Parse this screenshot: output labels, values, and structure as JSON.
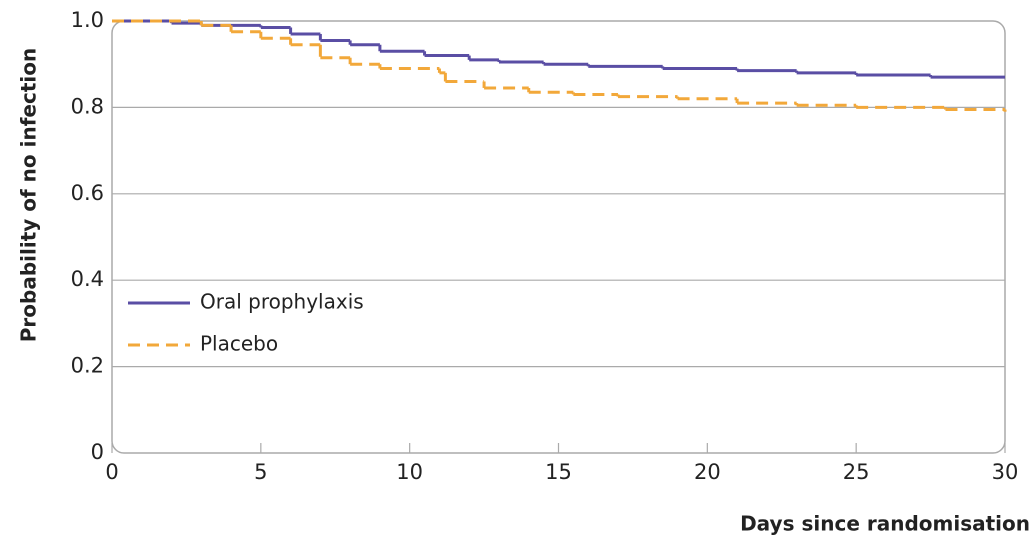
{
  "chart_data": {
    "type": "step",
    "xlabel": "Days since randomisation",
    "ylabel": "Probability of no infection",
    "xlim": [
      0,
      30
    ],
    "xticks": [
      0,
      5,
      10,
      15,
      20,
      25,
      30
    ],
    "ylim": [
      0,
      1
    ],
    "yticks": [
      0,
      0.2,
      0.4,
      0.6,
      0.8,
      {
        "value": 1,
        "label": "1.0"
      }
    ],
    "grid": true,
    "legend": "lower left",
    "series": [
      {
        "name": "Oral prophylaxis",
        "color": "#5a4ea4",
        "dash": false,
        "x": [
          0,
          2,
          3,
          5,
          6,
          7,
          8,
          9,
          10.5,
          12,
          13,
          14.5,
          16,
          18.5,
          21,
          23,
          25,
          27.5,
          30
        ],
        "values": [
          1.0,
          0.995,
          0.99,
          0.985,
          0.97,
          0.955,
          0.945,
          0.93,
          0.92,
          0.91,
          0.905,
          0.9,
          0.895,
          0.89,
          0.885,
          0.88,
          0.875,
          0.87,
          0.87
        ]
      },
      {
        "name": "Placebo",
        "color": "#f2a83a",
        "dash": true,
        "x": [
          0,
          3,
          4,
          5,
          6,
          7,
          8,
          9,
          11,
          11.2,
          12.5,
          14,
          15.5,
          17,
          19,
          21,
          23,
          25,
          28,
          30
        ],
        "values": [
          1.0,
          0.99,
          0.975,
          0.96,
          0.945,
          0.915,
          0.9,
          0.89,
          0.88,
          0.86,
          0.845,
          0.835,
          0.83,
          0.825,
          0.82,
          0.81,
          0.805,
          0.8,
          0.795,
          0.79
        ]
      }
    ]
  }
}
